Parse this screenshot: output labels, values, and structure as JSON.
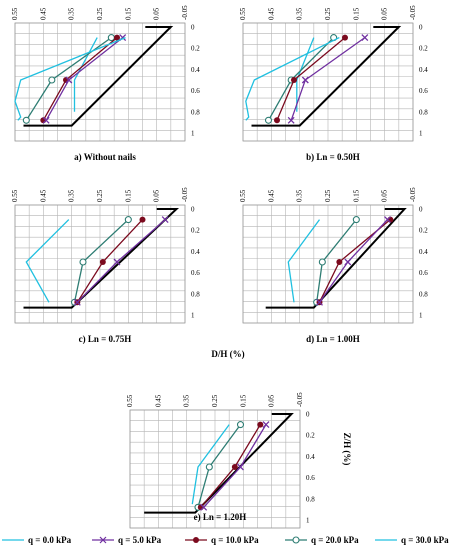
{
  "chart_data": {
    "type": "line",
    "x_ticks": [
      "0.55",
      "0.45",
      "0.35",
      "0.25",
      "0.15",
      "0.05",
      "-0.05"
    ],
    "y_ticks": [
      "0",
      "0.2",
      "0.4",
      "0.6",
      "0.8",
      "1"
    ],
    "xlim": [
      0.55,
      -0.05
    ],
    "ylim": [
      0,
      1
    ],
    "xlabel": "D/H (%)",
    "ylabel": "Z/H (%)",
    "colors": {
      "q0": "#ffffff",
      "q5": "#7030a0",
      "q10": "#7b0a1e",
      "q20": "#2e7d73",
      "q30": "#20c0e0",
      "wall": "#000000"
    },
    "legend": [
      {
        "key": "q0",
        "label": "q = 0.0 kPa"
      },
      {
        "key": "q5",
        "label": "q = 5.0 kPa"
      },
      {
        "key": "q10",
        "label": "q = 10.0 kPa"
      },
      {
        "key": "q20",
        "label": "q = 20.0 kPa"
      },
      {
        "key": "q30",
        "label": "q = 30.0 kPa"
      }
    ],
    "panels": [
      {
        "caption": "a) Without nails",
        "wall": [
          [
            0.09,
            0.0
          ],
          [
            0.0,
            0.0
          ],
          [
            0.35,
            0.93
          ],
          [
            0.52,
            0.93
          ]
        ],
        "series": [
          {
            "key": "q30",
            "x": [
              0.26,
              0.34,
              0.34
            ],
            "y": [
              0.1,
              0.5,
              0.8
            ],
            "marker": "none"
          },
          {
            "key": "q20",
            "x": [
              0.21,
              0.42,
              0.51
            ],
            "y": [
              0.1,
              0.5,
              0.88
            ],
            "marker": "circle"
          },
          {
            "key": "q10",
            "x": [
              0.19,
              0.37,
              0.45
            ],
            "y": [
              0.1,
              0.5,
              0.88
            ],
            "marker": "dot"
          },
          {
            "key": "q5",
            "x": [
              0.17,
              0.36,
              0.44
            ],
            "y": [
              0.1,
              0.5,
              0.88
            ],
            "marker": "x"
          },
          {
            "key": "q30",
            "x": [
              0.16,
              0.53,
              0.55,
              0.53,
              0.54
            ],
            "y": [
              0.1,
              0.5,
              0.7,
              0.85,
              0.88
            ],
            "marker": "none"
          }
        ]
      },
      {
        "caption": "b) Ln = 0.50H",
        "wall": [
          [
            0.09,
            0.0
          ],
          [
            0.0,
            0.0
          ],
          [
            0.35,
            0.93
          ],
          [
            0.52,
            0.93
          ]
        ],
        "series": [
          {
            "key": "q30",
            "x": [
              0.3,
              0.36,
              0.36
            ],
            "y": [
              0.1,
              0.5,
              0.8
            ],
            "marker": "none"
          },
          {
            "key": "q20",
            "x": [
              0.23,
              0.38,
              0.46
            ],
            "y": [
              0.1,
              0.5,
              0.88
            ],
            "marker": "circle"
          },
          {
            "key": "q10",
            "x": [
              0.19,
              0.37,
              0.43
            ],
            "y": [
              0.1,
              0.5,
              0.88
            ],
            "marker": "dot"
          },
          {
            "key": "q5",
            "x": [
              0.12,
              0.33,
              0.38
            ],
            "y": [
              0.1,
              0.5,
              0.88
            ],
            "marker": "x"
          },
          {
            "key": "q30",
            "x": [
              0.21,
              0.51,
              0.54,
              0.53,
              0.54
            ],
            "y": [
              0.1,
              0.5,
              0.7,
              0.85,
              0.88
            ],
            "marker": "none"
          }
        ]
      },
      {
        "caption": "c) Ln = 0.75H",
        "wall": [
          [
            0.05,
            0.0
          ],
          [
            -0.02,
            0.0
          ],
          [
            0.35,
            0.93
          ],
          [
            0.52,
            0.93
          ]
        ],
        "series": [
          {
            "key": "q30",
            "x": [
              0.36,
              0.51,
              0.43
            ],
            "y": [
              0.1,
              0.5,
              0.88
            ],
            "marker": "none"
          },
          {
            "key": "q20",
            "x": [
              0.15,
              0.31,
              0.34
            ],
            "y": [
              0.1,
              0.5,
              0.88
            ],
            "marker": "circle"
          },
          {
            "key": "q10",
            "x": [
              0.1,
              0.24,
              0.33
            ],
            "y": [
              0.1,
              0.5,
              0.88
            ],
            "marker": "dot"
          },
          {
            "key": "q5",
            "x": [
              0.02,
              0.19,
              0.33
            ],
            "y": [
              0.1,
              0.5,
              0.88
            ],
            "marker": "x"
          }
        ]
      },
      {
        "caption": "d) Ln = 1.00H",
        "wall": [
          [
            0.05,
            0.0
          ],
          [
            -0.02,
            0.0
          ],
          [
            0.3,
            0.93
          ],
          [
            0.47,
            0.93
          ]
        ],
        "series": [
          {
            "key": "q30",
            "x": [
              0.28,
              0.39,
              0.37
            ],
            "y": [
              0.1,
              0.5,
              0.88
            ],
            "marker": "none"
          },
          {
            "key": "q20",
            "x": [
              0.15,
              0.27,
              0.29
            ],
            "y": [
              0.1,
              0.5,
              0.88
            ],
            "marker": "circle"
          },
          {
            "key": "q10",
            "x": [
              0.03,
              0.21,
              0.28
            ],
            "y": [
              0.1,
              0.5,
              0.88
            ],
            "marker": "dot"
          },
          {
            "key": "q5",
            "x": [
              0.04,
              0.18,
              0.28
            ],
            "y": [
              0.1,
              0.5,
              0.88
            ],
            "marker": "x"
          }
        ]
      },
      {
        "caption": "e) Ln = 1.20H",
        "wall": [
          [
            0.05,
            0.0
          ],
          [
            -0.02,
            0.0
          ],
          [
            0.32,
            0.93
          ],
          [
            0.5,
            0.93
          ]
        ],
        "series": [
          {
            "key": "q30",
            "x": [
              0.2,
              0.31,
              0.33
            ],
            "y": [
              0.1,
              0.5,
              0.85
            ],
            "marker": "none"
          },
          {
            "key": "q20",
            "x": [
              0.16,
              0.27,
              0.31
            ],
            "y": [
              0.1,
              0.5,
              0.88
            ],
            "marker": "circle"
          },
          {
            "key": "q10",
            "x": [
              0.09,
              0.18,
              0.3
            ],
            "y": [
              0.1,
              0.5,
              0.88
            ],
            "marker": "dot"
          },
          {
            "key": "q5",
            "x": [
              0.07,
              0.16,
              0.29
            ],
            "y": [
              0.1,
              0.5,
              0.88
            ],
            "marker": "x"
          }
        ]
      }
    ]
  }
}
